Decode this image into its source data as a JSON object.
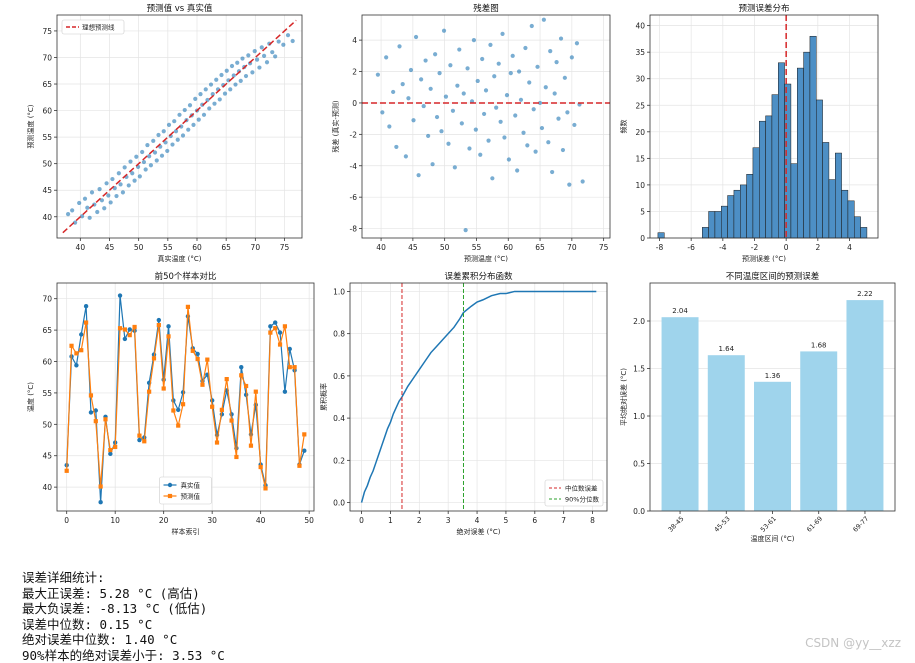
{
  "chart_data": [
    {
      "id": "p1",
      "type": "scatter",
      "title": "预测值 vs 真实值",
      "xlabel": "真实温度 (°C)",
      "ylabel": "预测温度 (°C)",
      "xlim": [
        36,
        78
      ],
      "ylim": [
        36,
        78
      ],
      "xticks": [
        40,
        45,
        50,
        55,
        60,
        65,
        70,
        75
      ],
      "yticks": [
        40,
        45,
        50,
        55,
        60,
        65,
        70,
        75
      ],
      "grid": true,
      "legend": "top-left",
      "ideal_line": {
        "name": "理想预测线",
        "color": "#d62728",
        "from": [
          37,
          37
        ],
        "to": [
          77,
          77
        ]
      },
      "point_color": "#1f77b4",
      "points": [
        [
          37.9,
          40.5
        ],
        [
          38.6,
          41.2
        ],
        [
          39.1,
          38.9
        ],
        [
          39.8,
          42.6
        ],
        [
          40.3,
          40.1
        ],
        [
          40.8,
          43.4
        ],
        [
          41.2,
          41.7
        ],
        [
          41.6,
          39.8
        ],
        [
          42.0,
          44.6
        ],
        [
          42.4,
          42.3
        ],
        [
          42.9,
          40.9
        ],
        [
          43.3,
          45.2
        ],
        [
          43.7,
          43.1
        ],
        [
          44.1,
          41.6
        ],
        [
          44.5,
          46.3
        ],
        [
          44.8,
          44.0
        ],
        [
          45.2,
          42.7
        ],
        [
          45.5,
          47.1
        ],
        [
          45.9,
          45.4
        ],
        [
          46.2,
          43.9
        ],
        [
          46.6,
          48.2
        ],
        [
          46.9,
          46.1
        ],
        [
          47.3,
          44.6
        ],
        [
          47.6,
          49.3
        ],
        [
          47.9,
          47.5
        ],
        [
          48.3,
          45.9
        ],
        [
          48.6,
          50.4
        ],
        [
          48.9,
          48.2
        ],
        [
          49.3,
          46.8
        ],
        [
          49.6,
          51.3
        ],
        [
          49.9,
          49.4
        ],
        [
          50.2,
          47.6
        ],
        [
          50.6,
          52.2
        ],
        [
          50.9,
          50.3
        ],
        [
          51.2,
          48.9
        ],
        [
          51.5,
          53.5
        ],
        [
          51.8,
          51.4
        ],
        [
          52.1,
          49.7
        ],
        [
          52.5,
          54.3
        ],
        [
          52.8,
          52.1
        ],
        [
          53.1,
          50.6
        ],
        [
          53.4,
          55.4
        ],
        [
          53.7,
          53.2
        ],
        [
          54.0,
          51.5
        ],
        [
          54.3,
          56.1
        ],
        [
          54.6,
          54.0
        ],
        [
          54.9,
          52.4
        ],
        [
          55.2,
          57.3
        ],
        [
          55.5,
          55.2
        ],
        [
          55.8,
          53.6
        ],
        [
          56.1,
          58.0
        ],
        [
          56.4,
          56.1
        ],
        [
          56.7,
          54.5
        ],
        [
          57.0,
          59.2
        ],
        [
          57.3,
          57.0
        ],
        [
          57.6,
          55.3
        ],
        [
          57.9,
          60.1
        ],
        [
          58.2,
          58.2
        ],
        [
          58.5,
          56.4
        ],
        [
          58.8,
          61.0
        ],
        [
          59.1,
          59.1
        ],
        [
          59.4,
          57.3
        ],
        [
          59.7,
          62.2
        ],
        [
          60.0,
          60.0
        ],
        [
          60.3,
          58.3
        ],
        [
          60.6,
          63.1
        ],
        [
          60.9,
          61.1
        ],
        [
          61.2,
          59.2
        ],
        [
          61.5,
          64.0
        ],
        [
          61.8,
          62.0
        ],
        [
          62.1,
          60.4
        ],
        [
          62.4,
          64.9
        ],
        [
          62.7,
          63.1
        ],
        [
          63.0,
          61.3
        ],
        [
          63.3,
          65.8
        ],
        [
          63.6,
          64.0
        ],
        [
          63.9,
          62.1
        ],
        [
          64.2,
          66.7
        ],
        [
          64.5,
          64.8
        ],
        [
          64.8,
          63.2
        ],
        [
          65.1,
          67.5
        ],
        [
          65.4,
          65.7
        ],
        [
          65.7,
          64.0
        ],
        [
          66.0,
          68.4
        ],
        [
          66.3,
          66.6
        ],
        [
          66.6,
          64.9
        ],
        [
          66.9,
          69.0
        ],
        [
          67.2,
          67.4
        ],
        [
          67.5,
          65.6
        ],
        [
          67.8,
          69.8
        ],
        [
          68.1,
          68.2
        ],
        [
          68.4,
          66.5
        ],
        [
          68.8,
          70.4
        ],
        [
          69.1,
          68.9
        ],
        [
          69.5,
          67.2
        ],
        [
          69.9,
          71.2
        ],
        [
          70.3,
          69.6
        ],
        [
          70.7,
          68.1
        ],
        [
          71.1,
          71.9
        ],
        [
          71.5,
          70.3
        ],
        [
          72.0,
          69.1
        ],
        [
          72.4,
          72.6
        ],
        [
          72.9,
          71.0
        ],
        [
          73.4,
          70.2
        ],
        [
          74.0,
          73.0
        ],
        [
          74.8,
          72.4
        ],
        [
          75.6,
          74.2
        ],
        [
          76.4,
          73.1
        ]
      ]
    },
    {
      "id": "p2",
      "type": "scatter",
      "title": "残差图",
      "xlabel": "预测温度 (°C)",
      "ylabel": "残差 (真实-预测)",
      "xlim": [
        37,
        76
      ],
      "ylim": [
        -8.6,
        5.6
      ],
      "xticks": [
        40,
        45,
        50,
        55,
        60,
        65,
        70,
        75
      ],
      "yticks": [
        -8,
        -6,
        -4,
        -2,
        0,
        2,
        4
      ],
      "grid": true,
      "zero_line_color": "#d62728",
      "point_color": "#1f77b4",
      "points": [
        [
          39.5,
          1.8
        ],
        [
          40.2,
          -0.6
        ],
        [
          40.8,
          2.9
        ],
        [
          41.3,
          -1.5
        ],
        [
          41.9,
          0.7
        ],
        [
          42.4,
          -2.8
        ],
        [
          42.9,
          3.6
        ],
        [
          43.4,
          1.2
        ],
        [
          43.9,
          -3.4
        ],
        [
          44.3,
          0.3
        ],
        [
          44.7,
          2.1
        ],
        [
          45.1,
          -1.1
        ],
        [
          45.5,
          4.2
        ],
        [
          45.9,
          -4.6
        ],
        [
          46.3,
          1.5
        ],
        [
          46.7,
          -0.2
        ],
        [
          47.0,
          2.7
        ],
        [
          47.4,
          -2.1
        ],
        [
          47.8,
          0.9
        ],
        [
          48.1,
          -3.9
        ],
        [
          48.5,
          3.1
        ],
        [
          48.8,
          -0.9
        ],
        [
          49.2,
          1.9
        ],
        [
          49.5,
          -1.8
        ],
        [
          49.9,
          4.6
        ],
        [
          50.2,
          0.4
        ],
        [
          50.6,
          -2.6
        ],
        [
          50.9,
          2.4
        ],
        [
          51.3,
          -0.5
        ],
        [
          51.6,
          -4.1
        ],
        [
          52.0,
          1.1
        ],
        [
          52.3,
          3.4
        ],
        [
          52.7,
          -1.3
        ],
        [
          53.0,
          0.6
        ],
        [
          53.3,
          -8.1
        ],
        [
          53.6,
          2.2
        ],
        [
          53.9,
          -2.9
        ],
        [
          54.3,
          0.1
        ],
        [
          54.6,
          4.0
        ],
        [
          54.9,
          -1.7
        ],
        [
          55.2,
          1.4
        ],
        [
          55.6,
          -3.3
        ],
        [
          55.9,
          2.8
        ],
        [
          56.2,
          -0.7
        ],
        [
          56.5,
          0.8
        ],
        [
          56.9,
          -2.4
        ],
        [
          57.2,
          3.7
        ],
        [
          57.5,
          -4.8
        ],
        [
          57.8,
          1.7
        ],
        [
          58.1,
          -0.3
        ],
        [
          58.5,
          2.5
        ],
        [
          58.8,
          -1.2
        ],
        [
          59.1,
          4.4
        ],
        [
          59.4,
          -2.2
        ],
        [
          59.8,
          0.5
        ],
        [
          60.1,
          -3.6
        ],
        [
          60.4,
          1.9
        ],
        [
          60.7,
          3.0
        ],
        [
          61.1,
          -0.8
        ],
        [
          61.4,
          -4.3
        ],
        [
          61.7,
          2.0
        ],
        [
          62.0,
          0.2
        ],
        [
          62.4,
          -1.9
        ],
        [
          62.7,
          3.5
        ],
        [
          63.0,
          -2.7
        ],
        [
          63.3,
          1.3
        ],
        [
          63.7,
          4.9
        ],
        [
          64.0,
          -0.4
        ],
        [
          64.3,
          -3.1
        ],
        [
          64.6,
          2.3
        ],
        [
          65.0,
          0.0
        ],
        [
          65.3,
          -1.6
        ],
        [
          65.6,
          5.3
        ],
        [
          65.9,
          1.0
        ],
        [
          66.3,
          -2.5
        ],
        [
          66.6,
          3.3
        ],
        [
          66.9,
          -4.4
        ],
        [
          67.3,
          0.6
        ],
        [
          67.6,
          2.6
        ],
        [
          67.9,
          -1.0
        ],
        [
          68.3,
          4.1
        ],
        [
          68.6,
          -3.0
        ],
        [
          68.9,
          1.6
        ],
        [
          69.3,
          -0.6
        ],
        [
          69.6,
          -5.2
        ],
        [
          70.0,
          2.9
        ],
        [
          70.4,
          -1.4
        ],
        [
          70.8,
          3.8
        ],
        [
          71.2,
          -0.1
        ],
        [
          71.7,
          -5.0
        ]
      ]
    },
    {
      "id": "p3",
      "type": "bar",
      "title": "预测误差分布",
      "xlabel": "预测误差 (°C)",
      "ylabel": "频数",
      "xlim": [
        -8.6,
        5.8
      ],
      "ylim": [
        0,
        42
      ],
      "xticks": [
        -8,
        -6,
        -4,
        -2,
        0,
        2,
        4
      ],
      "yticks": [
        0,
        5,
        10,
        15,
        20,
        25,
        30,
        35,
        40
      ],
      "grid": true,
      "bar_color": "#4d8fc5",
      "vline": {
        "x": 0,
        "color": "#d62728"
      },
      "bin_edges": [
        -8.1,
        -7.7,
        -7.3,
        -6.9,
        -6.5,
        -6.1,
        -5.7,
        -5.3,
        -4.9,
        -4.5,
        -4.1,
        -3.7,
        -3.3,
        -2.9,
        -2.5,
        -2.1,
        -1.7,
        -1.3,
        -0.9,
        -0.5,
        -0.1,
        0.3,
        0.7,
        1.1,
        1.5,
        1.9,
        2.3,
        2.7,
        3.1,
        3.5,
        3.9,
        4.3,
        4.7,
        5.1
      ],
      "counts": [
        1,
        0,
        0,
        0,
        0,
        0,
        0,
        2,
        5,
        5,
        6,
        8,
        9,
        10,
        12,
        17,
        22,
        23,
        27,
        33,
        29,
        14,
        32,
        35,
        38,
        26,
        18,
        11,
        16,
        9,
        7,
        4,
        2
      ]
    },
    {
      "id": "p4",
      "type": "line",
      "title": "前50个样本对比",
      "xlabel": "样本索引",
      "ylabel": "温度 (°C)",
      "xlim": [
        -2,
        51
      ],
      "ylim": [
        36.2,
        72.5
      ],
      "xticks": [
        0,
        10,
        20,
        30,
        40,
        50
      ],
      "yticks": [
        40,
        45,
        50,
        55,
        60,
        65,
        70
      ],
      "grid": true,
      "legend": "bottom-center",
      "series": [
        {
          "name": "真实值",
          "color": "#1f77b4",
          "values": [
            43.5,
            60.8,
            59.4,
            64.3,
            68.8,
            51.9,
            52.2,
            37.6,
            51.2,
            45.3,
            47.1,
            70.5,
            63.6,
            65.1,
            64.9,
            47.5,
            47.9,
            56.6,
            61.1,
            66.6,
            57.1,
            65.6,
            53.8,
            52.3,
            55.1,
            67.2,
            62.1,
            61.2,
            56.9,
            57.9,
            53.8,
            48.3,
            51.6,
            55.4,
            51.6,
            46.2,
            59.1,
            54.7,
            48.4,
            53.1,
            43.6,
            40.3,
            65.6,
            66.2,
            64.6,
            55.2,
            62.0,
            58.6,
            43.6,
            45.8
          ]
        },
        {
          "name": "预测值",
          "color": "#ff7f0e",
          "values": [
            42.6,
            62.5,
            61.3,
            61.8,
            66.2,
            54.6,
            50.5,
            40.1,
            50.8,
            45.9,
            46.4,
            65.3,
            65.1,
            64.2,
            65.5,
            48.2,
            47.3,
            55.2,
            60.5,
            65.8,
            55.7,
            64.0,
            52.2,
            49.8,
            53.2,
            68.7,
            61.7,
            60.4,
            56.3,
            60.3,
            52.8,
            47.1,
            52.3,
            57.2,
            50.6,
            44.8,
            57.8,
            56.1,
            46.6,
            55.2,
            43.2,
            39.8,
            64.6,
            65.3,
            62.7,
            65.6,
            59.1,
            59.1,
            43.4,
            48.4
          ]
        }
      ]
    },
    {
      "id": "p5",
      "type": "line",
      "title": "误差累积分布函数",
      "xlabel": "绝对误差 (°C)",
      "ylabel": "累积概率",
      "xlim": [
        -0.4,
        8.5
      ],
      "ylim": [
        -0.04,
        1.04
      ],
      "xticks": [
        0,
        1,
        2,
        3,
        4,
        5,
        6,
        7,
        8
      ],
      "yticks": [
        0.0,
        0.2,
        0.4,
        0.6,
        0.8,
        1.0
      ],
      "grid": true,
      "legend": "bottom-right",
      "series": [
        {
          "name": "",
          "color": "#1f77b4",
          "x": [
            0,
            0.1,
            0.2,
            0.3,
            0.4,
            0.5,
            0.6,
            0.7,
            0.8,
            0.9,
            1.0,
            1.1,
            1.2,
            1.3,
            1.4,
            1.6,
            1.8,
            2.0,
            2.2,
            2.4,
            2.6,
            2.8,
            3.0,
            3.2,
            3.4,
            3.53,
            3.8,
            4.0,
            4.2,
            4.5,
            4.8,
            5.0,
            5.3,
            6.0,
            7.0,
            8.13
          ],
          "y": [
            0.0,
            0.05,
            0.08,
            0.12,
            0.15,
            0.19,
            0.23,
            0.27,
            0.31,
            0.35,
            0.38,
            0.42,
            0.45,
            0.48,
            0.5,
            0.55,
            0.59,
            0.63,
            0.67,
            0.71,
            0.74,
            0.77,
            0.8,
            0.83,
            0.87,
            0.9,
            0.93,
            0.95,
            0.96,
            0.98,
            0.99,
            0.99,
            1.0,
            1.0,
            1.0,
            1.0
          ]
        }
      ],
      "vlines": [
        {
          "x": 1.4,
          "name": "中位数误差",
          "color": "#d62728"
        },
        {
          "x": 3.53,
          "name": "90%分位数",
          "color": "#2ca02c"
        }
      ]
    },
    {
      "id": "p6",
      "type": "bar",
      "title": "不同温度区间的预测误差",
      "xlabel": "温度区间 (°C)",
      "ylabel": "平均绝对误差 (°C)",
      "ylim": [
        0,
        2.4
      ],
      "yticks": [
        0.0,
        0.5,
        1.0,
        1.5,
        2.0
      ],
      "grid": true,
      "bar_color": "#9fd4ec",
      "categories": [
        "38-45",
        "45-53",
        "53-61",
        "61-69",
        "69-77"
      ],
      "values": [
        2.04,
        1.64,
        1.36,
        1.68,
        2.22
      ],
      "value_labels": [
        "2.04",
        "1.64",
        "1.36",
        "1.68",
        "2.22"
      ]
    }
  ],
  "stats": {
    "heading": "误差详细统计:",
    "lines": [
      "最大正误差: 5.28 °C (高估)",
      "最大负误差: -8.13 °C (低估)",
      "误差中位数: 0.15 °C",
      "绝对误差中位数: 1.40 °C",
      "90%样本的绝对误差小于: 3.53 °C"
    ]
  },
  "watermark": "CSDN @yy__xzz"
}
